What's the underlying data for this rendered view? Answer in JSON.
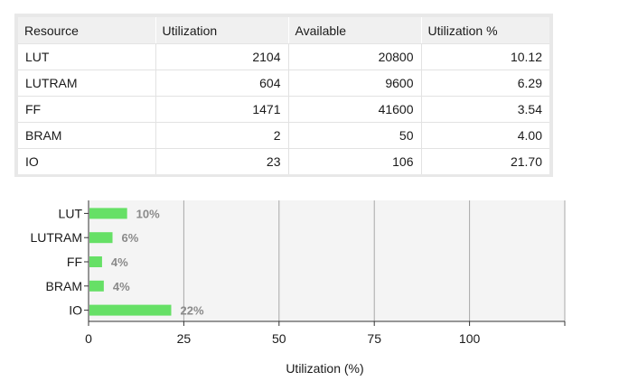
{
  "table": {
    "headers": [
      "Resource",
      "Utilization",
      "Available",
      "Utilization %"
    ],
    "rows": [
      [
        "LUT",
        "2104",
        "20800",
        "10.12"
      ],
      [
        "LUTRAM",
        "604",
        "9600",
        "6.29"
      ],
      [
        "FF",
        "1471",
        "41600",
        "3.54"
      ],
      [
        "BRAM",
        "2",
        "50",
        "4.00"
      ],
      [
        "IO",
        "23",
        "106",
        "21.70"
      ]
    ]
  },
  "chart_data": {
    "type": "bar",
    "orientation": "horizontal",
    "categories": [
      "LUT",
      "LUTRAM",
      "FF",
      "BRAM",
      "IO"
    ],
    "values": [
      10.12,
      6.29,
      3.54,
      4.0,
      21.7
    ],
    "value_labels": [
      "10%",
      "6%",
      "4%",
      "4%",
      "22%"
    ],
    "xlabel": "Utilization (%)",
    "ylabel": "",
    "xlim": [
      0,
      125
    ],
    "xticks": [
      0,
      25,
      50,
      75,
      100
    ],
    "grid": true,
    "bar_color": "#66e066",
    "label_color": "#8a8a8a",
    "plot_background": "#f4f4f4"
  }
}
